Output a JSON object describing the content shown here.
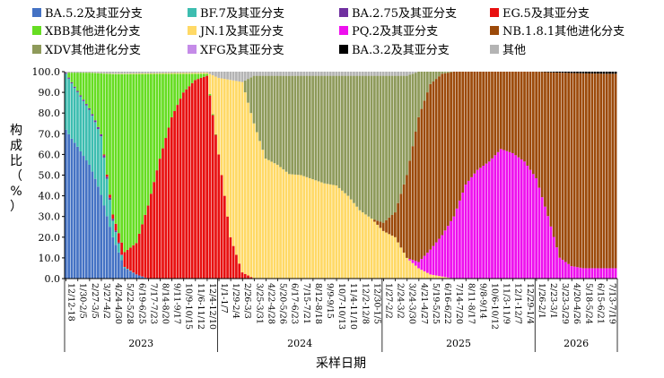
{
  "colors": {
    "BA.5.2": "#4472C4",
    "BF.7": "#3DBDB0",
    "BA.2.75": "#7030A0",
    "EG.5": "#E81010",
    "XBB": "#66DD22",
    "JN.1": "#FFD966",
    "PQ.2": "#EE10EE",
    "NB.1.8.1": "#9C4A0A",
    "XDV": "#8E9A5A",
    "XFG": "#C58BE8",
    "BA.3.2": "#000000",
    "other": "#B4B4B4"
  },
  "chart_data": {
    "type": "bar",
    "stacked": true,
    "xlabel": "采样日期",
    "ylabel": "构成比（%）",
    "ylim": [
      0,
      100
    ],
    "yticks": [
      "0.0",
      "10.0",
      "20.0",
      "30.0",
      "40.0",
      "50.0",
      "60.0",
      "70.0",
      "80.0",
      "90.0",
      "100.0"
    ],
    "legend": [
      {
        "key": "BA.5.2",
        "label": "BA.5.2及其亚分支"
      },
      {
        "key": "BF.7",
        "label": "BF.7及其亚分支"
      },
      {
        "key": "BA.2.75",
        "label": "BA.2.75及其亚分支"
      },
      {
        "key": "EG.5",
        "label": "EG.5及其亚分支"
      },
      {
        "key": "XBB",
        "label": "XBB其他进化分支"
      },
      {
        "key": "JN.1",
        "label": "JN.1及其亚分支"
      },
      {
        "key": "PQ.2",
        "label": "PQ.2及其亚分支"
      },
      {
        "key": "NB.1.8.1",
        "label": "NB.1.8.1其他进化分支"
      },
      {
        "key": "XDV",
        "label": "XDV其他进化分支"
      },
      {
        "key": "XFG",
        "label": "XFG及其亚分支"
      },
      {
        "key": "BA.3.2",
        "label": "BA.3.2及其亚分支"
      },
      {
        "key": "other",
        "label": "其他"
      }
    ],
    "stack_order": [
      "BA.5.2",
      "BF.7",
      "BA.2.75",
      "EG.5",
      "XBB",
      "JN.1",
      "PQ.2",
      "NB.1.8.1",
      "XDV",
      "XFG",
      "BA.3.2",
      "other"
    ],
    "x_tick_labels": [
      "12/12-18",
      "1/30-2/5",
      "2/27-3/5",
      "3/27-4/2",
      "4/24-4/30",
      "5/22-5/28",
      "6/19-6/25",
      "7/17-7/23",
      "8/14-8/20",
      "9/11-9/17",
      "10/9-10/15",
      "11/6-11/12",
      "12/4-12/10",
      "1/1-1/7",
      "1/29-2/4",
      "2/26-3/3",
      "3/25-3/31",
      "4/22-4/28",
      "5/20-5/26",
      "6/17-6/23",
      "7/15-7/21",
      "8/12-8/18",
      "9/9-9/15",
      "10/7-10/13",
      "11/4-11/10",
      "12/2-12/8",
      "12/30-1/5",
      "1/27-2/2",
      "2/24-3/2",
      "3/24-3/30",
      "4/21-4/27",
      "5/19-5/25",
      "6/16-6/22",
      "7/14-7/20",
      "8/11-8/17",
      "9/8-9/14",
      "10/6-10/12",
      "11/3-11/9",
      "12/1-12/7",
      "12/29-1/4",
      "1/26-2/1",
      "2/23-3/1",
      "3/23-3/29",
      "4/20-4/26",
      "5/18-5/24",
      "6/15-6/21",
      "7/13-7/19"
    ],
    "years": [
      {
        "label": "2023",
        "start": 0,
        "end": 12
      },
      {
        "label": "2024",
        "start": 13,
        "end": 26
      },
      {
        "label": "2025",
        "start": 27,
        "end": 39
      },
      {
        "label": "2026",
        "start": 40,
        "end": 46
      }
    ],
    "series_keyframes": {
      "BA.5.2": [
        [
          0,
          72
        ],
        [
          1,
          70
        ],
        [
          2,
          62
        ],
        [
          3,
          40
        ],
        [
          4,
          20
        ],
        [
          5,
          5
        ],
        [
          6,
          2
        ],
        [
          7,
          0
        ],
        [
          100,
          0
        ]
      ],
      "BF.7": [
        [
          0,
          27
        ],
        [
          1,
          29
        ],
        [
          2,
          30
        ],
        [
          3,
          28
        ],
        [
          4,
          8
        ],
        [
          5,
          0.5
        ],
        [
          6,
          0
        ],
        [
          100,
          0
        ]
      ],
      "BA.2.75": [
        [
          0,
          0.5
        ],
        [
          3,
          1
        ],
        [
          4,
          1
        ],
        [
          5,
          0
        ],
        [
          100,
          0
        ]
      ],
      "EG.5": [
        [
          0,
          0
        ],
        [
          3,
          0
        ],
        [
          4,
          2
        ],
        [
          5,
          7
        ],
        [
          6,
          15
        ],
        [
          7,
          35
        ],
        [
          8,
          58
        ],
        [
          9,
          78
        ],
        [
          10,
          90
        ],
        [
          11,
          96
        ],
        [
          12,
          98
        ],
        [
          13,
          60
        ],
        [
          14,
          20
        ],
        [
          15,
          3
        ],
        [
          16,
          0
        ],
        [
          100,
          0
        ]
      ],
      "XBB": [
        [
          0,
          0
        ],
        [
          3,
          29
        ],
        [
          4,
          68
        ],
        [
          5,
          84
        ],
        [
          6,
          81
        ],
        [
          7,
          63
        ],
        [
          8,
          41
        ],
        [
          9,
          21
        ],
        [
          10,
          9
        ],
        [
          11,
          3
        ],
        [
          12,
          1
        ],
        [
          13,
          0
        ],
        [
          100,
          0
        ]
      ],
      "JN.1": [
        [
          0,
          0
        ],
        [
          12,
          0.5
        ],
        [
          13,
          37
        ],
        [
          14,
          76
        ],
        [
          15,
          92
        ],
        [
          16,
          75
        ],
        [
          17,
          58
        ],
        [
          18,
          55
        ],
        [
          19,
          50
        ],
        [
          20,
          50
        ],
        [
          21,
          48
        ],
        [
          22,
          46
        ],
        [
          23,
          45
        ],
        [
          24,
          40
        ],
        [
          25,
          33
        ],
        [
          26,
          29
        ],
        [
          27,
          23
        ],
        [
          28,
          20
        ],
        [
          29,
          10
        ],
        [
          30,
          5
        ],
        [
          31,
          2
        ],
        [
          32,
          1
        ],
        [
          33,
          0
        ],
        [
          100,
          0
        ]
      ],
      "PQ.2": [
        [
          0,
          0
        ],
        [
          29,
          0
        ],
        [
          30,
          3
        ],
        [
          31,
          12
        ],
        [
          32,
          20
        ],
        [
          33,
          30
        ],
        [
          34,
          45
        ],
        [
          35,
          52
        ],
        [
          36,
          56
        ],
        [
          37,
          62
        ],
        [
          38,
          60
        ],
        [
          39,
          56
        ],
        [
          40,
          48
        ],
        [
          41,
          30
        ],
        [
          42,
          10
        ],
        [
          43,
          6
        ],
        [
          44,
          5
        ],
        [
          45,
          5
        ],
        [
          46,
          5
        ],
        [
          100,
          5
        ]
      ],
      "NB.1.8.1": [
        [
          0,
          0
        ],
        [
          26,
          0
        ],
        [
          27,
          4
        ],
        [
          28,
          12
        ],
        [
          29,
          40
        ],
        [
          30,
          70
        ],
        [
          31,
          80
        ],
        [
          32,
          78
        ],
        [
          33,
          70
        ],
        [
          34,
          54
        ],
        [
          35,
          47
        ],
        [
          36,
          43
        ],
        [
          37,
          37
        ],
        [
          38,
          39
        ],
        [
          39,
          43
        ],
        [
          40,
          51
        ],
        [
          41,
          69
        ],
        [
          42,
          89
        ],
        [
          43,
          93
        ],
        [
          44,
          94
        ],
        [
          45,
          94
        ],
        [
          46,
          94
        ],
        [
          100,
          94
        ]
      ],
      "XDV": [
        [
          0,
          0
        ],
        [
          15,
          0
        ],
        [
          16,
          23
        ],
        [
          17,
          40
        ],
        [
          18,
          43
        ],
        [
          19,
          47
        ],
        [
          20,
          48
        ],
        [
          21,
          50
        ],
        [
          22,
          52
        ],
        [
          23,
          53
        ],
        [
          24,
          58
        ],
        [
          25,
          65
        ],
        [
          26,
          69
        ],
        [
          27,
          71
        ],
        [
          28,
          66
        ],
        [
          29,
          48
        ],
        [
          30,
          22
        ],
        [
          31,
          6
        ],
        [
          32,
          1
        ],
        [
          33,
          0
        ],
        [
          100,
          0
        ]
      ],
      "XFG": [
        [
          0,
          0
        ],
        [
          100,
          0
        ]
      ],
      "BA.3.2": [
        [
          0,
          0
        ],
        [
          40,
          0
        ],
        [
          41,
          0.3
        ],
        [
          44,
          0.8
        ],
        [
          46,
          1
        ],
        [
          100,
          1
        ]
      ],
      "other": [
        [
          0,
          0.5
        ],
        [
          2,
          0.5
        ],
        [
          4,
          1
        ],
        [
          12,
          0.5
        ],
        [
          13,
          3
        ],
        [
          14,
          4
        ],
        [
          15,
          5
        ],
        [
          16,
          2
        ],
        [
          26,
          2
        ],
        [
          27,
          2
        ],
        [
          28,
          2
        ],
        [
          29,
          2
        ],
        [
          30,
          0
        ],
        [
          100,
          0
        ]
      ]
    }
  }
}
